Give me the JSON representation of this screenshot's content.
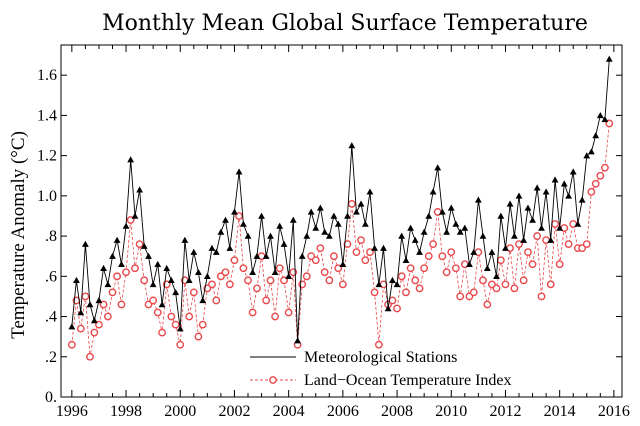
{
  "chart_data": {
    "type": "line",
    "title": "Monthly Mean Global Surface Temperature",
    "xlabel": "",
    "ylabel": "Temperature Anomaly (°C)",
    "xlim": [
      1995.6,
      2016.3
    ],
    "ylim": [
      0.0,
      1.75
    ],
    "x_ticks": [
      1996,
      1998,
      2000,
      2002,
      2004,
      2006,
      2008,
      2010,
      2012,
      2014,
      2016
    ],
    "y_ticks": [
      0.0,
      0.2,
      0.4,
      0.6,
      0.8,
      1.0,
      1.2,
      1.4,
      1.6
    ],
    "y_tick_labels": [
      "0.",
      ".2",
      ".4",
      ".6",
      ".8",
      "1.0",
      "1.2",
      "1.4",
      "1.6"
    ],
    "legend_position": "bottom-right",
    "grid": false,
    "series": [
      {
        "name": "Meteorological Stations",
        "color": "#000000",
        "marker": "triangle",
        "line_style": "solid",
        "x": [
          1996.0,
          1996.17,
          1996.33,
          1996.5,
          1996.67,
          1996.83,
          1997.0,
          1997.17,
          1997.33,
          1997.5,
          1997.67,
          1997.83,
          1998.0,
          1998.17,
          1998.33,
          1998.5,
          1998.67,
          1998.83,
          1999.0,
          1999.17,
          1999.33,
          1999.5,
          1999.67,
          1999.83,
          2000.0,
          2000.17,
          2000.33,
          2000.5,
          2000.67,
          2000.83,
          2001.0,
          2001.17,
          2001.33,
          2001.5,
          2001.67,
          2001.83,
          2002.0,
          2002.17,
          2002.33,
          2002.5,
          2002.67,
          2002.83,
          2003.0,
          2003.17,
          2003.33,
          2003.5,
          2003.67,
          2003.83,
          2004.0,
          2004.17,
          2004.33,
          2004.5,
          2004.67,
          2004.83,
          2005.0,
          2005.17,
          2005.33,
          2005.5,
          2005.67,
          2005.83,
          2006.0,
          2006.17,
          2006.33,
          2006.5,
          2006.67,
          2006.83,
          2007.0,
          2007.17,
          2007.33,
          2007.5,
          2007.67,
          2007.83,
          2008.0,
          2008.17,
          2008.33,
          2008.5,
          2008.67,
          2008.83,
          2009.0,
          2009.17,
          2009.33,
          2009.5,
          2009.67,
          2009.83,
          2010.0,
          2010.17,
          2010.33,
          2010.5,
          2010.67,
          2010.83,
          2011.0,
          2011.17,
          2011.33,
          2011.5,
          2011.67,
          2011.83,
          2012.0,
          2012.17,
          2012.33,
          2012.5,
          2012.67,
          2012.83,
          2013.0,
          2013.17,
          2013.33,
          2013.5,
          2013.67,
          2013.83,
          2014.0,
          2014.17,
          2014.33,
          2014.5,
          2014.67,
          2014.83,
          2015.0,
          2015.17,
          2015.33,
          2015.5,
          2015.67,
          2015.83
        ],
        "values": [
          0.35,
          0.58,
          0.42,
          0.76,
          0.46,
          0.38,
          0.48,
          0.64,
          0.56,
          0.7,
          0.78,
          0.66,
          0.85,
          1.18,
          0.9,
          1.03,
          0.75,
          0.7,
          0.56,
          0.66,
          0.46,
          0.64,
          0.58,
          0.52,
          0.34,
          0.78,
          0.58,
          0.72,
          0.62,
          0.48,
          0.6,
          0.74,
          0.72,
          0.82,
          0.88,
          0.74,
          0.92,
          1.12,
          0.86,
          0.8,
          0.62,
          0.7,
          0.9,
          0.7,
          0.8,
          0.62,
          0.85,
          0.76,
          0.6,
          0.88,
          0.28,
          0.7,
          0.8,
          0.92,
          0.84,
          0.94,
          0.82,
          0.8,
          0.9,
          0.86,
          0.66,
          0.9,
          1.25,
          0.92,
          0.96,
          0.86,
          1.02,
          0.74,
          0.56,
          0.74,
          0.44,
          0.58,
          0.56,
          0.8,
          0.68,
          0.84,
          0.78,
          0.72,
          0.82,
          0.9,
          1.02,
          1.14,
          0.92,
          0.82,
          0.94,
          0.86,
          0.82,
          0.84,
          0.66,
          0.72,
          0.98,
          0.8,
          0.64,
          0.72,
          0.6,
          0.9,
          0.74,
          0.96,
          0.8,
          1.0,
          0.78,
          0.94,
          0.88,
          1.04,
          0.84,
          1.02,
          0.78,
          1.08,
          0.84,
          1.06,
          1.0,
          1.12,
          0.86,
          0.98,
          1.2,
          1.22,
          1.3,
          1.4,
          1.38,
          1.68
        ]
      },
      {
        "name": "Land−Ocean Temperature Index",
        "color": "#e8474a",
        "marker": "circle",
        "line_style": "dashed",
        "x": [
          1996.0,
          1996.17,
          1996.33,
          1996.5,
          1996.67,
          1996.83,
          1997.0,
          1997.17,
          1997.33,
          1997.5,
          1997.67,
          1997.83,
          1998.0,
          1998.17,
          1998.33,
          1998.5,
          1998.67,
          1998.83,
          1999.0,
          1999.17,
          1999.33,
          1999.5,
          1999.67,
          1999.83,
          2000.0,
          2000.17,
          2000.33,
          2000.5,
          2000.67,
          2000.83,
          2001.0,
          2001.17,
          2001.33,
          2001.5,
          2001.67,
          2001.83,
          2002.0,
          2002.17,
          2002.33,
          2002.5,
          2002.67,
          2002.83,
          2003.0,
          2003.17,
          2003.33,
          2003.5,
          2003.67,
          2003.83,
          2004.0,
          2004.17,
          2004.33,
          2004.5,
          2004.67,
          2004.83,
          2005.0,
          2005.17,
          2005.33,
          2005.5,
          2005.67,
          2005.83,
          2006.0,
          2006.17,
          2006.33,
          2006.5,
          2006.67,
          2006.83,
          2007.0,
          2007.17,
          2007.33,
          2007.5,
          2007.67,
          2007.83,
          2008.0,
          2008.17,
          2008.33,
          2008.5,
          2008.67,
          2008.83,
          2009.0,
          2009.17,
          2009.33,
          2009.5,
          2009.67,
          2009.83,
          2010.0,
          2010.17,
          2010.33,
          2010.5,
          2010.67,
          2010.83,
          2011.0,
          2011.17,
          2011.33,
          2011.5,
          2011.67,
          2011.83,
          2012.0,
          2012.17,
          2012.33,
          2012.5,
          2012.67,
          2012.83,
          2013.0,
          2013.17,
          2013.33,
          2013.5,
          2013.67,
          2013.83,
          2014.0,
          2014.17,
          2014.33,
          2014.5,
          2014.67,
          2014.83,
          2015.0,
          2015.17,
          2015.33,
          2015.5,
          2015.67,
          2015.83
        ],
        "values": [
          0.26,
          0.48,
          0.34,
          0.5,
          0.2,
          0.32,
          0.36,
          0.46,
          0.4,
          0.52,
          0.6,
          0.46,
          0.62,
          0.88,
          0.64,
          0.76,
          0.58,
          0.46,
          0.48,
          0.42,
          0.32,
          0.56,
          0.4,
          0.36,
          0.26,
          0.58,
          0.4,
          0.52,
          0.3,
          0.36,
          0.54,
          0.56,
          0.48,
          0.6,
          0.62,
          0.56,
          0.68,
          0.9,
          0.64,
          0.58,
          0.42,
          0.54,
          0.7,
          0.48,
          0.58,
          0.4,
          0.64,
          0.58,
          0.42,
          0.62,
          0.26,
          0.56,
          0.6,
          0.7,
          0.68,
          0.74,
          0.62,
          0.58,
          0.7,
          0.64,
          0.56,
          0.76,
          0.96,
          0.72,
          0.78,
          0.68,
          0.72,
          0.52,
          0.26,
          0.56,
          0.46,
          0.48,
          0.44,
          0.6,
          0.52,
          0.64,
          0.58,
          0.54,
          0.64,
          0.7,
          0.76,
          0.92,
          0.7,
          0.62,
          0.72,
          0.64,
          0.5,
          0.66,
          0.5,
          0.52,
          0.72,
          0.58,
          0.46,
          0.56,
          0.54,
          0.68,
          0.56,
          0.74,
          0.54,
          0.76,
          0.58,
          0.72,
          0.66,
          0.8,
          0.5,
          0.78,
          0.56,
          0.86,
          0.66,
          0.84,
          0.76,
          0.86,
          0.74,
          0.74,
          0.76,
          1.02,
          1.06,
          1.1,
          1.14,
          1.36
        ]
      }
    ]
  }
}
